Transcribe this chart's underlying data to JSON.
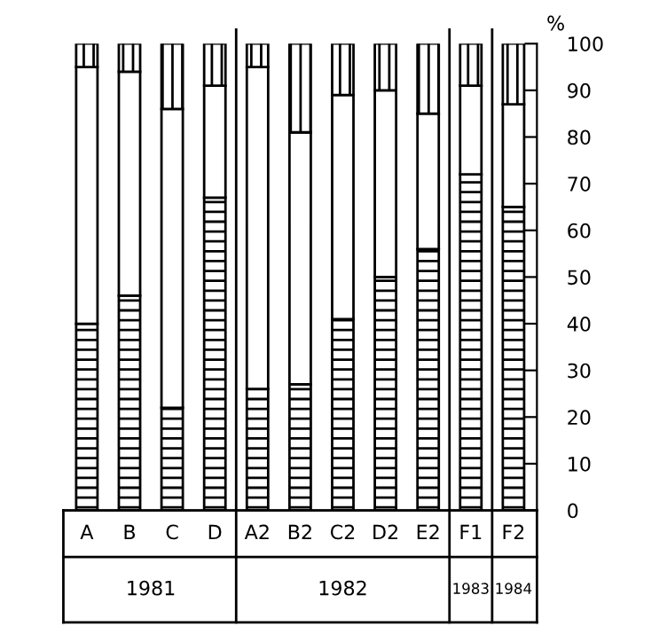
{
  "chart_data": {
    "type": "bar",
    "stacked": true,
    "categories": [
      "A",
      "B",
      "C",
      "D",
      "A2",
      "B2",
      "C2",
      "D2",
      "E2",
      "F1",
      "F2"
    ],
    "series": [
      {
        "color": "#000000",
        "values": [
          40,
          46,
          22,
          67,
          26,
          27,
          41,
          50,
          56,
          72,
          65
        ]
      },
      {
        "color": "#ffffff",
        "values": [
          55,
          48,
          64,
          24,
          69,
          54,
          48,
          40,
          29,
          19,
          22
        ]
      },
      {
        "color": "#000000",
        "values": [
          5,
          6,
          14,
          9,
          5,
          19,
          11,
          10,
          15,
          9,
          13
        ]
      }
    ],
    "ylabel": "%",
    "ylim": [
      0,
      100
    ],
    "yticks": [
      0,
      10,
      20,
      30,
      40,
      50,
      60,
      70,
      80,
      90,
      100
    ],
    "grid": false,
    "legend": false,
    "annotations": [
      "1981",
      "1982",
      "1983",
      "1984"
    ]
  }
}
